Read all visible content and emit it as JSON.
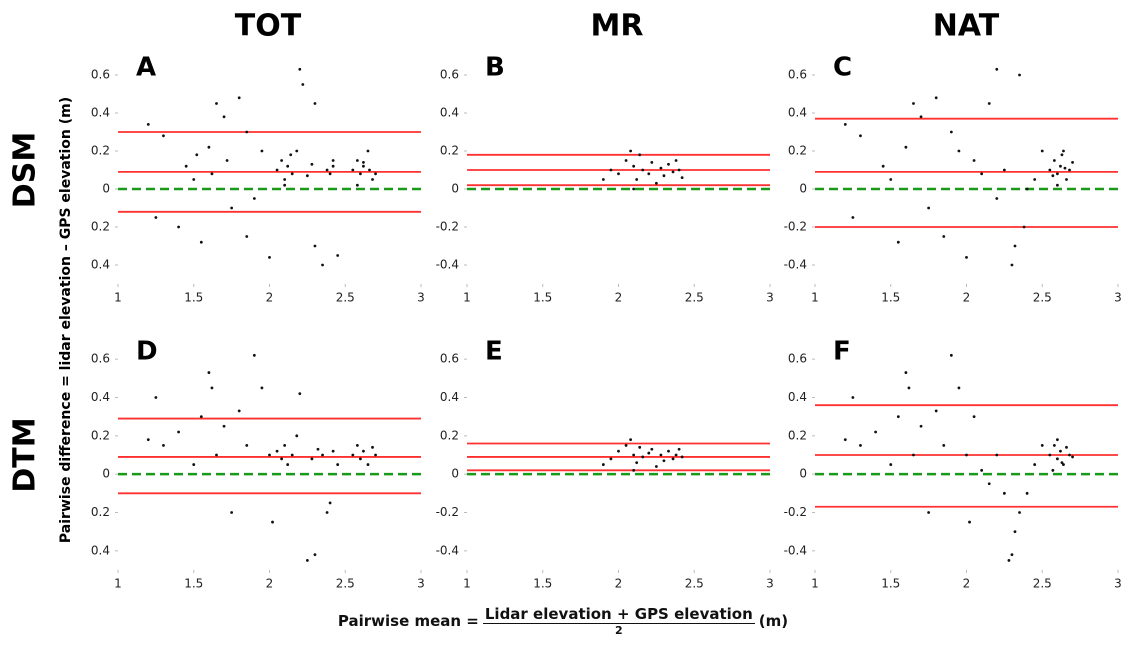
{
  "column_titles": [
    "TOT",
    "MR",
    "NAT"
  ],
  "row_titles": [
    "DSM",
    "DTM"
  ],
  "y_label": "Pairwise difference = lidar elevation – GPS elevation (m)",
  "x_label": {
    "prefix": "Pairwise mean =",
    "numerator": "Lidar elevation + GPS elevation",
    "denominator": "2",
    "unit": "(m)"
  },
  "chart_data": [
    {
      "type": "scatter",
      "label": "A",
      "color": "#111111",
      "x": [
        1.2,
        1.25,
        1.3,
        1.45,
        1.5,
        1.55,
        1.6,
        1.65,
        1.7,
        1.75,
        1.8,
        1.85,
        1.9,
        1.95,
        2.0,
        1.85,
        1.72,
        1.62,
        1.4,
        1.52,
        2.05,
        2.08,
        2.1,
        2.12,
        2.15,
        2.18,
        2.2,
        2.25,
        2.28,
        2.3,
        2.38,
        2.4,
        2.42,
        2.45,
        2.55,
        2.58,
        2.6,
        2.62,
        2.65,
        2.68,
        2.1,
        2.14,
        2.22,
        2.35,
        2.42,
        2.58,
        2.62,
        2.66,
        2.7,
        2.3
      ],
      "y": [
        0.34,
        -0.15,
        0.28,
        0.12,
        0.05,
        -0.28,
        0.22,
        0.45,
        0.38,
        -0.1,
        0.48,
        0.3,
        -0.05,
        0.2,
        -0.36,
        -0.25,
        0.15,
        0.08,
        -0.2,
        0.18,
        0.1,
        0.15,
        0.05,
        0.12,
        0.08,
        0.2,
        0.63,
        0.07,
        0.13,
        0.45,
        0.1,
        0.08,
        0.15,
        -0.35,
        0.1,
        0.15,
        0.08,
        0.12,
        0.2,
        0.05,
        0.02,
        0.18,
        0.55,
        -0.4,
        0.12,
        0.02,
        0.14,
        0.1,
        0.08,
        -0.3
      ],
      "hlines": [
        {
          "value": 0.3,
          "color": "#ff3030",
          "style": "solid"
        },
        {
          "value": 0.09,
          "color": "#ff3030",
          "style": "solid"
        },
        {
          "value": -0.12,
          "color": "#ff3030",
          "style": "solid"
        },
        {
          "value": 0,
          "color": "#1a9a1a",
          "style": "dashed"
        }
      ],
      "xlim": [
        1,
        3
      ],
      "ylim": [
        -0.5,
        0.7
      ],
      "xticks": [
        1,
        1.5,
        2,
        2.5,
        3
      ],
      "yticks": [
        {
          "value": -0.4,
          "label": "0.4"
        },
        {
          "value": -0.2,
          "label": "0.2"
        },
        0,
        0.2,
        0.4,
        0.6
      ]
    },
    {
      "type": "scatter",
      "label": "B",
      "color": "#111111",
      "x": [
        1.9,
        1.95,
        2.0,
        2.05,
        2.08,
        2.1,
        2.12,
        2.14,
        2.16,
        2.2,
        2.22,
        2.25,
        2.28,
        2.3,
        2.33,
        2.36,
        2.38,
        2.4,
        2.42,
        2.1
      ],
      "y": [
        0.05,
        0.1,
        0.08,
        0.15,
        0.2,
        0.12,
        0.05,
        0.18,
        0.1,
        0.08,
        0.14,
        0.03,
        0.11,
        0.07,
        0.13,
        0.09,
        0.15,
        0.1,
        0.06,
        0.0
      ],
      "hlines": [
        {
          "value": 0.18,
          "color": "#ff3030",
          "style": "solid"
        },
        {
          "value": 0.1,
          "color": "#ff3030",
          "style": "solid"
        },
        {
          "value": 0.02,
          "color": "#ff3030",
          "style": "solid"
        },
        {
          "value": 0,
          "color": "#1a9a1a",
          "style": "dashed"
        }
      ],
      "xlim": [
        1,
        3
      ],
      "ylim": [
        -0.5,
        0.7
      ],
      "xticks": [
        1,
        1.5,
        2,
        2.5,
        3
      ],
      "yticks": [
        -0.4,
        -0.2,
        0,
        0.2,
        0.4,
        0.6
      ]
    },
    {
      "type": "scatter",
      "label": "C",
      "color": "#111111",
      "x": [
        1.2,
        1.25,
        1.3,
        1.45,
        1.5,
        1.55,
        1.6,
        1.65,
        1.7,
        1.75,
        1.8,
        1.85,
        1.9,
        1.95,
        2.0,
        2.05,
        2.1,
        2.15,
        2.2,
        2.25,
        2.3,
        2.32,
        2.35,
        2.38,
        2.4,
        2.45,
        2.5,
        2.55,
        2.58,
        2.6,
        2.62,
        2.64,
        2.66,
        2.68,
        2.7,
        2.6,
        2.63,
        2.65,
        2.57,
        2.2
      ],
      "y": [
        0.34,
        -0.15,
        0.28,
        0.12,
        0.05,
        -0.28,
        0.22,
        0.45,
        0.38,
        -0.1,
        0.48,
        -0.25,
        0.3,
        0.2,
        -0.36,
        0.15,
        0.08,
        0.45,
        0.63,
        0.1,
        -0.4,
        -0.3,
        0.6,
        -0.2,
        0.0,
        0.05,
        0.2,
        0.1,
        0.15,
        0.08,
        0.12,
        0.2,
        0.05,
        0.1,
        0.14,
        0.02,
        0.18,
        0.11,
        0.07,
        -0.05
      ],
      "hlines": [
        {
          "value": 0.37,
          "color": "#ff3030",
          "style": "solid"
        },
        {
          "value": 0.09,
          "color": "#ff3030",
          "style": "solid"
        },
        {
          "value": -0.2,
          "color": "#ff3030",
          "style": "solid"
        },
        {
          "value": 0,
          "color": "#1a9a1a",
          "style": "dashed"
        }
      ],
      "xlim": [
        1,
        3
      ],
      "ylim": [
        -0.5,
        0.7
      ],
      "xticks": [
        1,
        1.5,
        2,
        2.5,
        3
      ],
      "yticks": [
        -0.4,
        -0.2,
        0,
        0.2,
        0.4,
        0.6
      ]
    },
    {
      "type": "scatter",
      "label": "D",
      "color": "#111111",
      "x": [
        1.2,
        1.25,
        1.3,
        1.4,
        1.5,
        1.55,
        1.6,
        1.62,
        1.65,
        1.7,
        1.75,
        1.8,
        1.85,
        1.9,
        1.95,
        2.0,
        2.02,
        2.05,
        2.08,
        2.1,
        2.12,
        2.15,
        2.18,
        2.2,
        2.25,
        2.28,
        2.3,
        2.32,
        2.35,
        2.38,
        2.4,
        2.42,
        2.45,
        2.55,
        2.58,
        2.6,
        2.62,
        2.65,
        2.68,
        2.7
      ],
      "y": [
        0.18,
        0.4,
        0.15,
        0.22,
        0.05,
        0.3,
        0.53,
        0.45,
        0.1,
        0.25,
        -0.2,
        0.33,
        0.15,
        0.62,
        0.45,
        0.1,
        -0.25,
        0.12,
        0.08,
        0.15,
        0.05,
        0.1,
        0.2,
        0.42,
        -0.45,
        0.08,
        -0.42,
        0.13,
        0.1,
        -0.2,
        -0.15,
        0.12,
        0.05,
        0.1,
        0.15,
        0.08,
        0.12,
        0.05,
        0.14,
        0.1
      ],
      "hlines": [
        {
          "value": 0.29,
          "color": "#ff3030",
          "style": "solid"
        },
        {
          "value": 0.09,
          "color": "#ff3030",
          "style": "solid"
        },
        {
          "value": -0.1,
          "color": "#ff3030",
          "style": "solid"
        },
        {
          "value": 0,
          "color": "#1a9a1a",
          "style": "dashed"
        }
      ],
      "xlim": [
        1,
        3
      ],
      "ylim": [
        -0.5,
        0.7
      ],
      "xticks": [
        1,
        1.5,
        2,
        2.5,
        3
      ],
      "yticks": [
        {
          "value": -0.4,
          "label": "0.4"
        },
        {
          "value": -0.2,
          "label": "0.2"
        },
        0,
        0.2,
        0.4,
        0.6
      ]
    },
    {
      "type": "scatter",
      "label": "E",
      "color": "#111111",
      "x": [
        1.9,
        1.95,
        2.0,
        2.05,
        2.08,
        2.1,
        2.12,
        2.14,
        2.16,
        2.2,
        2.22,
        2.25,
        2.28,
        2.3,
        2.33,
        2.36,
        2.38,
        2.4,
        2.42,
        2.1
      ],
      "y": [
        0.05,
        0.08,
        0.12,
        0.15,
        0.18,
        0.1,
        0.06,
        0.14,
        0.09,
        0.11,
        0.13,
        0.04,
        0.1,
        0.07,
        0.12,
        0.08,
        0.1,
        0.13,
        0.09,
        0.02
      ],
      "hlines": [
        {
          "value": 0.16,
          "color": "#ff3030",
          "style": "solid"
        },
        {
          "value": 0.09,
          "color": "#ff3030",
          "style": "solid"
        },
        {
          "value": 0.02,
          "color": "#ff3030",
          "style": "solid"
        },
        {
          "value": 0,
          "color": "#1a9a1a",
          "style": "dashed"
        }
      ],
      "xlim": [
        1,
        3
      ],
      "ylim": [
        -0.5,
        0.7
      ],
      "xticks": [
        1,
        1.5,
        2,
        2.5,
        3
      ],
      "yticks": [
        -0.4,
        -0.2,
        0,
        0.2,
        0.4,
        0.6
      ]
    },
    {
      "type": "scatter",
      "label": "F",
      "color": "#111111",
      "x": [
        1.2,
        1.25,
        1.3,
        1.4,
        1.5,
        1.55,
        1.6,
        1.62,
        1.65,
        1.7,
        1.75,
        1.8,
        1.85,
        1.9,
        1.95,
        2.0,
        2.02,
        2.05,
        2.1,
        2.15,
        2.2,
        2.25,
        2.28,
        2.3,
        2.32,
        2.35,
        2.4,
        2.45,
        2.5,
        2.55,
        2.58,
        2.6,
        2.62,
        2.64,
        2.66,
        2.68,
        2.7,
        2.6,
        2.63,
        2.57
      ],
      "y": [
        0.18,
        0.4,
        0.15,
        0.22,
        0.05,
        0.3,
        0.53,
        0.45,
        0.1,
        0.25,
        -0.2,
        0.33,
        0.15,
        0.62,
        0.45,
        0.1,
        -0.25,
        0.3,
        0.02,
        -0.05,
        0.1,
        -0.1,
        -0.45,
        -0.42,
        -0.3,
        -0.2,
        -0.1,
        0.05,
        0.15,
        0.1,
        0.15,
        0.08,
        0.12,
        0.05,
        0.14,
        0.1,
        0.09,
        0.18,
        0.06,
        0.02
      ],
      "hlines": [
        {
          "value": 0.36,
          "color": "#ff3030",
          "style": "solid"
        },
        {
          "value": 0.1,
          "color": "#ff3030",
          "style": "solid"
        },
        {
          "value": -0.17,
          "color": "#ff3030",
          "style": "solid"
        },
        {
          "value": 0,
          "color": "#1a9a1a",
          "style": "dashed"
        }
      ],
      "xlim": [
        1,
        3
      ],
      "ylim": [
        -0.5,
        0.7
      ],
      "xticks": [
        1,
        1.5,
        2,
        2.5,
        3
      ],
      "yticks": [
        -0.4,
        -0.2,
        0,
        0.2,
        0.4,
        0.6
      ]
    }
  ]
}
